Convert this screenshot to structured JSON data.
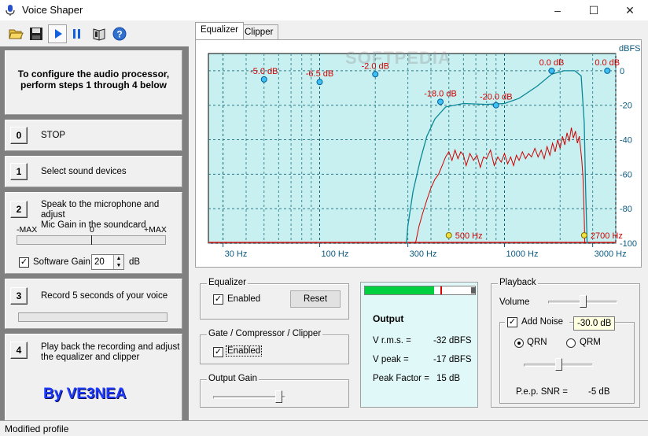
{
  "window": {
    "title": "Voice Shaper",
    "minimize": "–",
    "maximize": "☐",
    "close": "✕"
  },
  "left": {
    "instructions": [
      "To configure the audio processor,",
      "perform steps 1 through 4 below"
    ],
    "steps": [
      {
        "num": "0",
        "text": [
          "STOP"
        ]
      },
      {
        "num": "1",
        "text": [
          "Select sound devices"
        ]
      },
      {
        "num": "2",
        "text": [
          "Speak to the microphone and adjust",
          "Mic Gain in the soundcard"
        ]
      },
      {
        "num": "3",
        "text": [
          "Record 5 seconds of your voice"
        ]
      },
      {
        "num": "4",
        "text": [
          "Play back the recording and adjust",
          "the equalizer and clipper"
        ]
      }
    ],
    "meter": {
      "min": "-MAX",
      "mid": "0",
      "max": "+MAX"
    },
    "software_gain": {
      "label": "Software Gain",
      "value": "20",
      "unit": "dB",
      "checked": true
    },
    "credit": "By VE3NEA"
  },
  "tabs": [
    {
      "label": "Equalizer"
    },
    {
      "label": "Clipper"
    }
  ],
  "watermark": "SOFTPEDIA",
  "chart_data": {
    "type": "line",
    "xscale": "log",
    "xlim": [
      25,
      4000
    ],
    "ylim": [
      -100,
      10
    ],
    "ylabel": "dBFS",
    "xticks": [
      {
        "v": 30,
        "label": "30 Hz"
      },
      {
        "v": 100,
        "label": "100 Hz"
      },
      {
        "v": 300,
        "label": "300 Hz"
      },
      {
        "v": 1000,
        "label": "1000 Hz"
      },
      {
        "v": 3000,
        "label": "3000 Hz"
      }
    ],
    "yticks": [
      {
        "v": 0,
        "label": "0"
      },
      {
        "v": -20,
        "label": "-20"
      },
      {
        "v": -40,
        "label": "-40"
      },
      {
        "v": -60,
        "label": "-60"
      },
      {
        "v": -80,
        "label": "-80"
      },
      {
        "v": -100,
        "label": "-100"
      }
    ],
    "eq_points": [
      {
        "f": 50,
        "db": -5.0,
        "label": "-5.0 dB"
      },
      {
        "f": 100,
        "db": -6.5,
        "label": "-6.5 dB"
      },
      {
        "f": 200,
        "db": -2.0,
        "label": "-2.0 dB"
      },
      {
        "f": 450,
        "db": -18.0,
        "label": "-18.0 dB"
      },
      {
        "f": 900,
        "db": -20.0,
        "label": "-20.0 dB"
      },
      {
        "f": 1800,
        "db": 0.0,
        "label": "0.0 dB"
      },
      {
        "f": 3600,
        "db": 0.0,
        "label": "0.0 dB"
      }
    ],
    "filter_points": [
      {
        "f": 500,
        "label": "500 Hz"
      },
      {
        "f": 2700,
        "label": "2700 Hz"
      }
    ],
    "response": [
      [
        295,
        -100
      ],
      [
        300,
        -90
      ],
      [
        320,
        -70
      ],
      [
        350,
        -52
      ],
      [
        380,
        -38
      ],
      [
        420,
        -28
      ],
      [
        480,
        -21
      ],
      [
        600,
        -19
      ],
      [
        800,
        -19.5
      ],
      [
        1000,
        -19
      ],
      [
        1200,
        -16
      ],
      [
        1500,
        -9
      ],
      [
        1800,
        -2
      ],
      [
        2100,
        0
      ],
      [
        2400,
        0
      ],
      [
        2600,
        -3
      ],
      [
        2700,
        -30
      ],
      [
        2750,
        -70
      ],
      [
        2800,
        -100
      ]
    ],
    "spectrum": [
      [
        330,
        -100
      ],
      [
        345,
        -90
      ],
      [
        360,
        -83
      ],
      [
        380,
        -75
      ],
      [
        400,
        -68
      ],
      [
        420,
        -63
      ],
      [
        440,
        -60
      ],
      [
        460,
        -55
      ],
      [
        480,
        -50
      ],
      [
        500,
        -47
      ],
      [
        520,
        -52
      ],
      [
        540,
        -46
      ],
      [
        560,
        -51
      ],
      [
        580,
        -47
      ],
      [
        600,
        -49
      ],
      [
        620,
        -55
      ],
      [
        650,
        -48
      ],
      [
        680,
        -52
      ],
      [
        710,
        -49
      ],
      [
        740,
        -56
      ],
      [
        770,
        -50
      ],
      [
        800,
        -51
      ],
      [
        840,
        -46
      ],
      [
        880,
        -55
      ],
      [
        920,
        -50
      ],
      [
        960,
        -53
      ],
      [
        1000,
        -48
      ],
      [
        1040,
        -54
      ],
      [
        1080,
        -50
      ],
      [
        1120,
        -55
      ],
      [
        1160,
        -49
      ],
      [
        1200,
        -52
      ],
      [
        1250,
        -47
      ],
      [
        1300,
        -51
      ],
      [
        1350,
        -48
      ],
      [
        1400,
        -50
      ],
      [
        1460,
        -45
      ],
      [
        1520,
        -50
      ],
      [
        1580,
        -46
      ],
      [
        1640,
        -51
      ],
      [
        1700,
        -44
      ],
      [
        1760,
        -49
      ],
      [
        1820,
        -42
      ],
      [
        1880,
        -47
      ],
      [
        1940,
        -40
      ],
      [
        2000,
        -45
      ],
      [
        2060,
        -38
      ],
      [
        2120,
        -43
      ],
      [
        2180,
        -36
      ],
      [
        2240,
        -41
      ],
      [
        2300,
        -33
      ],
      [
        2360,
        -39
      ],
      [
        2420,
        -35
      ],
      [
        2480,
        -42
      ],
      [
        2540,
        -38
      ],
      [
        2580,
        -45
      ],
      [
        2620,
        -52
      ],
      [
        2660,
        -62
      ],
      [
        2700,
        -85
      ],
      [
        2720,
        -100
      ]
    ]
  },
  "equalizer": {
    "title": "Equalizer",
    "enabled_label": "Enabled",
    "enabled": true,
    "reset_label": "Reset"
  },
  "gate": {
    "title": "Gate / Compressor / Clipper",
    "enabled_label": "Enabled",
    "enabled": true
  },
  "output_gain": {
    "title": "Output Gain",
    "level": 0.95
  },
  "output": {
    "level": 0.62,
    "title": "Output",
    "rows": [
      {
        "label": "V r.m.s. =",
        "value": "-32 dBFS"
      },
      {
        "label": "V peak =",
        "value": "-17 dBFS"
      },
      {
        "label": "Peak Factor =",
        "value": "15 dB"
      }
    ]
  },
  "playback": {
    "title": "Playback",
    "volume_label": "Volume",
    "volume_level": 0.5,
    "add_noise_label": "Add Noise",
    "add_noise": true,
    "tooltip": "-30.0 dB",
    "qrn_label": "QRN",
    "qrm_label": "QRM",
    "noise_level": 0.5,
    "snr_label": "P.e.p. SNR =",
    "snr_value": "-5 dB"
  },
  "status": "Modified profile"
}
